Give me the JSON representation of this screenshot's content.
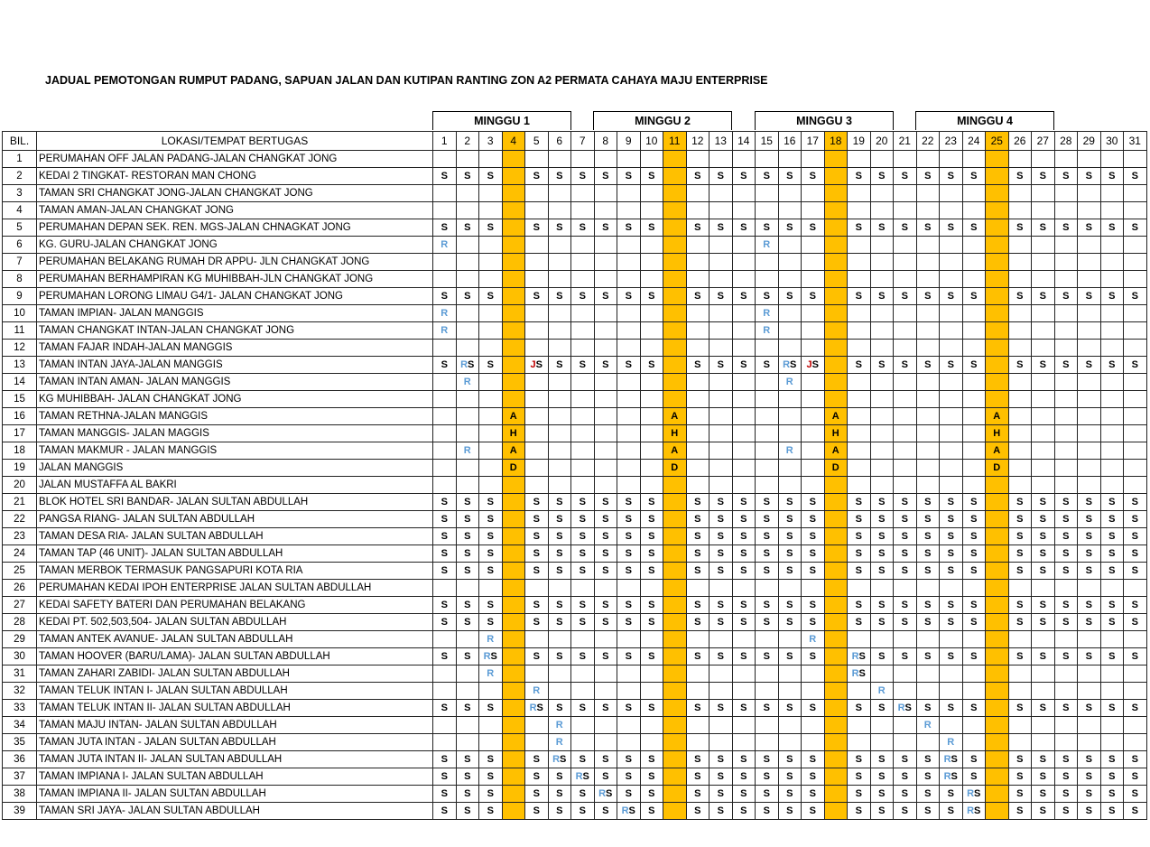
{
  "title": "JADUAL PEMOTONGAN RUMPUT PADANG, SAPUAN JALAN DAN KUTIPAN RANTING ZON A2 PERMATA CAHAYA MAJU ENTERPRISE",
  "weeks": [
    {
      "label": "MINGGU 1"
    },
    {
      "label": "MINGGU 2"
    },
    {
      "label": "MINGGU 3"
    },
    {
      "label": "MINGGU 4"
    }
  ],
  "header": {
    "bil": "BIL.",
    "location": "LOKASI/TEMPAT BERTUGAS",
    "days": [
      "1",
      "2",
      "3",
      "4",
      "5",
      "6",
      "7",
      "8",
      "9",
      "10",
      "11",
      "12",
      "13",
      "14",
      "15",
      "16",
      "17",
      "18",
      "19",
      "20",
      "21",
      "22",
      "23",
      "24",
      "25",
      "26",
      "27",
      "28",
      "29",
      "30",
      "31"
    ]
  },
  "highlight_days": [
    4,
    11,
    18,
    25
  ],
  "colors": {
    "highlight": "#ffc000",
    "R": "#5b9bd5",
    "J": "#c00000",
    "default": "#000000"
  },
  "rows": [
    {
      "bil": "1",
      "location": "PERUMAHAN OFF JALAN PADANG-JALAN CHANGKAT JONG",
      "cells": {}
    },
    {
      "bil": "2",
      "location": "KEDAI 2 TINGKAT- RESTORAN MAN CHONG",
      "cells": {
        "1": "S",
        "2": "S",
        "3": "S",
        "5": "S",
        "6": "S",
        "7": "S",
        "8": "S",
        "9": "S",
        "10": "S",
        "12": "S",
        "13": "S",
        "14": "S",
        "15": "S",
        "16": "S",
        "17": "S",
        "19": "S",
        "20": "S",
        "21": "S",
        "22": "S",
        "23": "S",
        "24": "S",
        "26": "S",
        "27": "S",
        "28": "S",
        "29": "S",
        "30": "S",
        "31": "S"
      }
    },
    {
      "bil": "3",
      "location": "TAMAN SRI CHANGKAT JONG-JALAN CHANGKAT JONG",
      "cells": {}
    },
    {
      "bil": "4",
      "location": "TAMAN AMAN-JALAN CHANGKAT JONG",
      "cells": {}
    },
    {
      "bil": "5",
      "location": "PERUMAHAN DEPAN SEK. REN. MGS-JALAN CHNAGKAT JONG",
      "cells": {
        "1": "S",
        "2": "S",
        "3": "S",
        "5": "S",
        "6": "S",
        "7": "S",
        "8": "S",
        "9": "S",
        "10": "S",
        "12": "S",
        "13": "S",
        "14": "S",
        "15": "S",
        "16": "S",
        "17": "S",
        "19": "S",
        "20": "S",
        "21": "S",
        "22": "S",
        "23": "S",
        "24": "S",
        "26": "S",
        "27": "S",
        "28": "S",
        "29": "S",
        "30": "S",
        "31": "S"
      }
    },
    {
      "bil": "6",
      "location": "KG. GURU-JALAN CHANGKAT JONG",
      "cells": {
        "1": "R",
        "15": "R"
      }
    },
    {
      "bil": "7",
      "location": "PERUMAHAN BELAKANG RUMAH DR APPU- JLN CHANGKAT JONG",
      "cells": {}
    },
    {
      "bil": "8",
      "location": "PERUMAHAN BERHAMPIRAN KG MUHIBBAH-JLN CHANGKAT JONG",
      "cells": {}
    },
    {
      "bil": "9",
      "location": "PERUMAHAN LORONG LIMAU G4/1- JALAN CHANGKAT JONG",
      "cells": {
        "1": "S",
        "2": "S",
        "3": "S",
        "5": "S",
        "6": "S",
        "7": "S",
        "8": "S",
        "9": "S",
        "10": "S",
        "12": "S",
        "13": "S",
        "14": "S",
        "15": "S",
        "16": "S",
        "17": "S",
        "19": "S",
        "20": "S",
        "21": "S",
        "22": "S",
        "23": "S",
        "24": "S",
        "26": "S",
        "27": "S",
        "28": "S",
        "29": "S",
        "30": "S",
        "31": "S"
      }
    },
    {
      "bil": "10",
      "location": "TAMAN IMPIAN- JALAN MANGGIS",
      "cells": {
        "1": "R",
        "15": "R"
      }
    },
    {
      "bil": "11",
      "location": "TAMAN CHANGKAT INTAN-JALAN CHANGKAT JONG",
      "cells": {
        "1": "R",
        "15": "R"
      }
    },
    {
      "bil": "12",
      "location": "TAMAN FAJAR INDAH-JALAN MANGGIS",
      "cells": {}
    },
    {
      "bil": "13",
      "location": "TAMAN INTAN JAYA-JALAN MANGGIS",
      "cells": {
        "1": "S",
        "2": "RS",
        "3": "S",
        "5": "JS",
        "6": "S",
        "7": "S",
        "8": "S",
        "9": "S",
        "10": "S",
        "12": "S",
        "13": "S",
        "14": "S",
        "15": "S",
        "16": "RS",
        "17": "JS",
        "19": "S",
        "20": "S",
        "21": "S",
        "22": "S",
        "23": "S",
        "24": "S",
        "26": "S",
        "27": "S",
        "28": "S",
        "29": "S",
        "30": "S",
        "31": "S"
      }
    },
    {
      "bil": "14",
      "location": "TAMAN INTAN AMAN- JALAN MANGGIS",
      "cells": {
        "2": "R",
        "16": "R"
      }
    },
    {
      "bil": "15",
      "location": "KG MUHIBBAH- JALAN CHANGKAT JONG",
      "cells": {}
    },
    {
      "bil": "16",
      "location": "TAMAN RETHNA-JALAN MANGGIS",
      "cells": {
        "4": "A",
        "11": "A",
        "18": "A",
        "25": "A"
      }
    },
    {
      "bil": "17",
      "location": "TAMAN MANGGIS- JALAN MAGGIS",
      "cells": {
        "4": "H",
        "11": "H",
        "18": "H",
        "25": "H"
      }
    },
    {
      "bil": "18",
      "location": "TAMAN MAKMUR - JALAN MANGGIS",
      "cells": {
        "2": "R",
        "4": "A",
        "11": "A",
        "16": "R",
        "18": "A",
        "25": "A"
      }
    },
    {
      "bil": "19",
      "location": "JALAN MANGGIS",
      "cells": {
        "4": "D",
        "11": "D",
        "18": "D",
        "25": "D"
      }
    },
    {
      "bil": "20",
      "location": "JALAN MUSTAFFA AL BAKRI",
      "cells": {}
    },
    {
      "bil": "21",
      "location": "BLOK HOTEL SRI BANDAR- JALAN SULTAN ABDULLAH",
      "cells": {
        "1": "S",
        "2": "S",
        "3": "S",
        "5": "S",
        "6": "S",
        "7": "S",
        "8": "S",
        "9": "S",
        "10": "S",
        "12": "S",
        "13": "S",
        "14": "S",
        "15": "S",
        "16": "S",
        "17": "S",
        "19": "S",
        "20": "S",
        "21": "S",
        "22": "S",
        "23": "S",
        "24": "S",
        "26": "S",
        "27": "S",
        "28": "S",
        "29": "S",
        "30": "S",
        "31": "S"
      }
    },
    {
      "bil": "22",
      "location": "PANGSA RIANG- JALAN SULTAN ABDULLAH",
      "cells": {
        "1": "S",
        "2": "S",
        "3": "S",
        "5": "S",
        "6": "S",
        "7": "S",
        "8": "S",
        "9": "S",
        "10": "S",
        "12": "S",
        "13": "S",
        "14": "S",
        "15": "S",
        "16": "S",
        "17": "S",
        "19": "S",
        "20": "S",
        "21": "S",
        "22": "S",
        "23": "S",
        "24": "S",
        "26": "S",
        "27": "S",
        "28": "S",
        "29": "S",
        "30": "S",
        "31": "S"
      }
    },
    {
      "bil": "23",
      "location": "TAMAN DESA RIA- JALAN SULTAN ABDULLAH",
      "cells": {
        "1": "S",
        "2": "S",
        "3": "S",
        "5": "S",
        "6": "S",
        "7": "S",
        "8": "S",
        "9": "S",
        "10": "S",
        "12": "S",
        "13": "S",
        "14": "S",
        "15": "S",
        "16": "S",
        "17": "S",
        "19": "S",
        "20": "S",
        "21": "S",
        "22": "S",
        "23": "S",
        "24": "S",
        "26": "S",
        "27": "S",
        "28": "S",
        "29": "S",
        "30": "S",
        "31": "S"
      }
    },
    {
      "bil": "24",
      "location": "TAMAN TAP (46 UNIT)- JALAN SULTAN ABDULLAH",
      "cells": {
        "1": "S",
        "2": "S",
        "3": "S",
        "5": "S",
        "6": "S",
        "7": "S",
        "8": "S",
        "9": "S",
        "10": "S",
        "12": "S",
        "13": "S",
        "14": "S",
        "15": "S",
        "16": "S",
        "17": "S",
        "19": "S",
        "20": "S",
        "21": "S",
        "22": "S",
        "23": "S",
        "24": "S",
        "26": "S",
        "27": "S",
        "28": "S",
        "29": "S",
        "30": "S",
        "31": "S"
      }
    },
    {
      "bil": "25",
      "location": "TAMAN MERBOK TERMASUK PANGSAPURI KOTA RIA",
      "cells": {
        "1": "S",
        "2": "S",
        "3": "S",
        "5": "S",
        "6": "S",
        "7": "S",
        "8": "S",
        "9": "S",
        "10": "S",
        "12": "S",
        "13": "S",
        "14": "S",
        "15": "S",
        "16": "S",
        "17": "S",
        "19": "S",
        "20": "S",
        "21": "S",
        "22": "S",
        "23": "S",
        "24": "S",
        "26": "S",
        "27": "S",
        "28": "S",
        "29": "S",
        "30": "S",
        "31": "S"
      }
    },
    {
      "bil": "26",
      "location": "PERUMAHAN KEDAI IPOH ENTERPRISE JALAN SULTAN ABDULLAH",
      "cells": {}
    },
    {
      "bil": "27",
      "location": "KEDAI SAFETY BATERI DAN PERUMAHAN BELAKANG",
      "cells": {
        "1": "S",
        "2": "S",
        "3": "S",
        "5": "S",
        "6": "S",
        "7": "S",
        "8": "S",
        "9": "S",
        "10": "S",
        "12": "S",
        "13": "S",
        "14": "S",
        "15": "S",
        "16": "S",
        "17": "S",
        "19": "S",
        "20": "S",
        "21": "S",
        "22": "S",
        "23": "S",
        "24": "S",
        "26": "S",
        "27": "S",
        "28": "S",
        "29": "S",
        "30": "S",
        "31": "S"
      }
    },
    {
      "bil": "28",
      "location": "KEDAI PT. 502,503,504- JALAN SULTAN ABDULLAH",
      "cells": {
        "1": "S",
        "2": "S",
        "3": "S",
        "5": "S",
        "6": "S",
        "7": "S",
        "8": "S",
        "9": "S",
        "10": "S",
        "12": "S",
        "13": "S",
        "14": "S",
        "15": "S",
        "16": "S",
        "17": "S",
        "19": "S",
        "20": "S",
        "21": "S",
        "22": "S",
        "23": "S",
        "24": "S",
        "26": "S",
        "27": "S",
        "28": "S",
        "29": "S",
        "30": "S",
        "31": "S"
      }
    },
    {
      "bil": "29",
      "location": "TAMAN ANTEK AVANUE- JALAN SULTAN ABDULLAH",
      "cells": {
        "3": "R",
        "17": "R"
      }
    },
    {
      "bil": "30",
      "location": "TAMAN HOOVER (BARU/LAMA)- JALAN SULTAN ABDULLAH",
      "cells": {
        "1": "S",
        "2": "S",
        "3": "RS",
        "5": "S",
        "6": "S",
        "7": "S",
        "8": "S",
        "9": "S",
        "10": "S",
        "12": "S",
        "13": "S",
        "14": "S",
        "15": "S",
        "16": "S",
        "17": "S",
        "19": "RS",
        "20": "S",
        "21": "S",
        "22": "S",
        "23": "S",
        "24": "S",
        "26": "S",
        "27": "S",
        "28": "S",
        "29": "S",
        "30": "S",
        "31": "S"
      }
    },
    {
      "bil": "31",
      "location": "TAMAN ZAHARI ZABIDI- JALAN SULTAN ABDULLAH",
      "cells": {
        "3": "R",
        "19": "RS"
      }
    },
    {
      "bil": "32",
      "location": "TAMAN TELUK INTAN I- JALAN SULTAN ABDULLAH",
      "cells": {
        "5": "R",
        "20": "R"
      }
    },
    {
      "bil": "33",
      "location": "TAMAN TELUK INTAN II- JALAN SULTAN ABDULLAH",
      "cells": {
        "1": "S",
        "2": "S",
        "3": "S",
        "5": "RS",
        "6": "S",
        "7": "S",
        "8": "S",
        "9": "S",
        "10": "S",
        "12": "S",
        "13": "S",
        "14": "S",
        "15": "S",
        "16": "S",
        "17": "S",
        "19": "S",
        "20": "S",
        "21": "RS",
        "22": "S",
        "23": "S",
        "24": "S",
        "26": "S",
        "27": "S",
        "28": "S",
        "29": "S",
        "30": "S",
        "31": "S"
      }
    },
    {
      "bil": "34",
      "location": "TAMAN MAJU INTAN- JALAN SULTAN ABDULLAH",
      "cells": {
        "6": "R",
        "22": "R"
      }
    },
    {
      "bil": "35",
      "location": "TAMAN JUTA INTAN - JALAN SULTAN ABDULLAH",
      "cells": {
        "6": "R",
        "23": "R"
      }
    },
    {
      "bil": "36",
      "location": "TAMAN JUTA INTAN II- JALAN SULTAN ABDULLAH",
      "cells": {
        "1": "S",
        "2": "S",
        "3": "S",
        "5": "S",
        "6": "RS",
        "7": "S",
        "8": "S",
        "9": "S",
        "10": "S",
        "12": "S",
        "13": "S",
        "14": "S",
        "15": "S",
        "16": "S",
        "17": "S",
        "19": "S",
        "20": "S",
        "21": "S",
        "22": "S",
        "23": "RS",
        "24": "S",
        "26": "S",
        "27": "S",
        "28": "S",
        "29": "S",
        "30": "S",
        "31": "S"
      }
    },
    {
      "bil": "37",
      "location": "TAMAN IMPIANA I- JALAN SULTAN ABDULLAH",
      "cells": {
        "1": "S",
        "2": "S",
        "3": "S",
        "5": "S",
        "6": "S",
        "7": "RS",
        "8": "S",
        "9": "S",
        "10": "S",
        "12": "S",
        "13": "S",
        "14": "S",
        "15": "S",
        "16": "S",
        "17": "S",
        "19": "S",
        "20": "S",
        "21": "S",
        "22": "S",
        "23": "RS",
        "24": "S",
        "26": "S",
        "27": "S",
        "28": "S",
        "29": "S",
        "30": "S",
        "31": "S"
      }
    },
    {
      "bil": "38",
      "location": "TAMAN IMPIANA II- JALAN SULTAN ABDULLAH",
      "cells": {
        "1": "S",
        "2": "S",
        "3": "S",
        "5": "S",
        "6": "S",
        "7": "S",
        "8": "RS",
        "9": "S",
        "10": "S",
        "12": "S",
        "13": "S",
        "14": "S",
        "15": "S",
        "16": "S",
        "17": "S",
        "19": "S",
        "20": "S",
        "21": "S",
        "22": "S",
        "23": "S",
        "24": "RS",
        "26": "S",
        "27": "S",
        "28": "S",
        "29": "S",
        "30": "S",
        "31": "S"
      }
    },
    {
      "bil": "39",
      "location": "TAMAN SRI JAYA- JALAN SULTAN ABDULLAH",
      "cells": {
        "1": "S",
        "2": "S",
        "3": "S",
        "5": "S",
        "6": "S",
        "7": "S",
        "8": "S",
        "9": "RS",
        "10": "S",
        "12": "S",
        "13": "S",
        "14": "S",
        "15": "S",
        "16": "S",
        "17": "S",
        "19": "S",
        "20": "S",
        "21": "S",
        "22": "S",
        "23": "S",
        "24": "RS",
        "26": "S",
        "27": "S",
        "28": "S",
        "29": "S",
        "30": "S",
        "31": "S"
      }
    }
  ]
}
